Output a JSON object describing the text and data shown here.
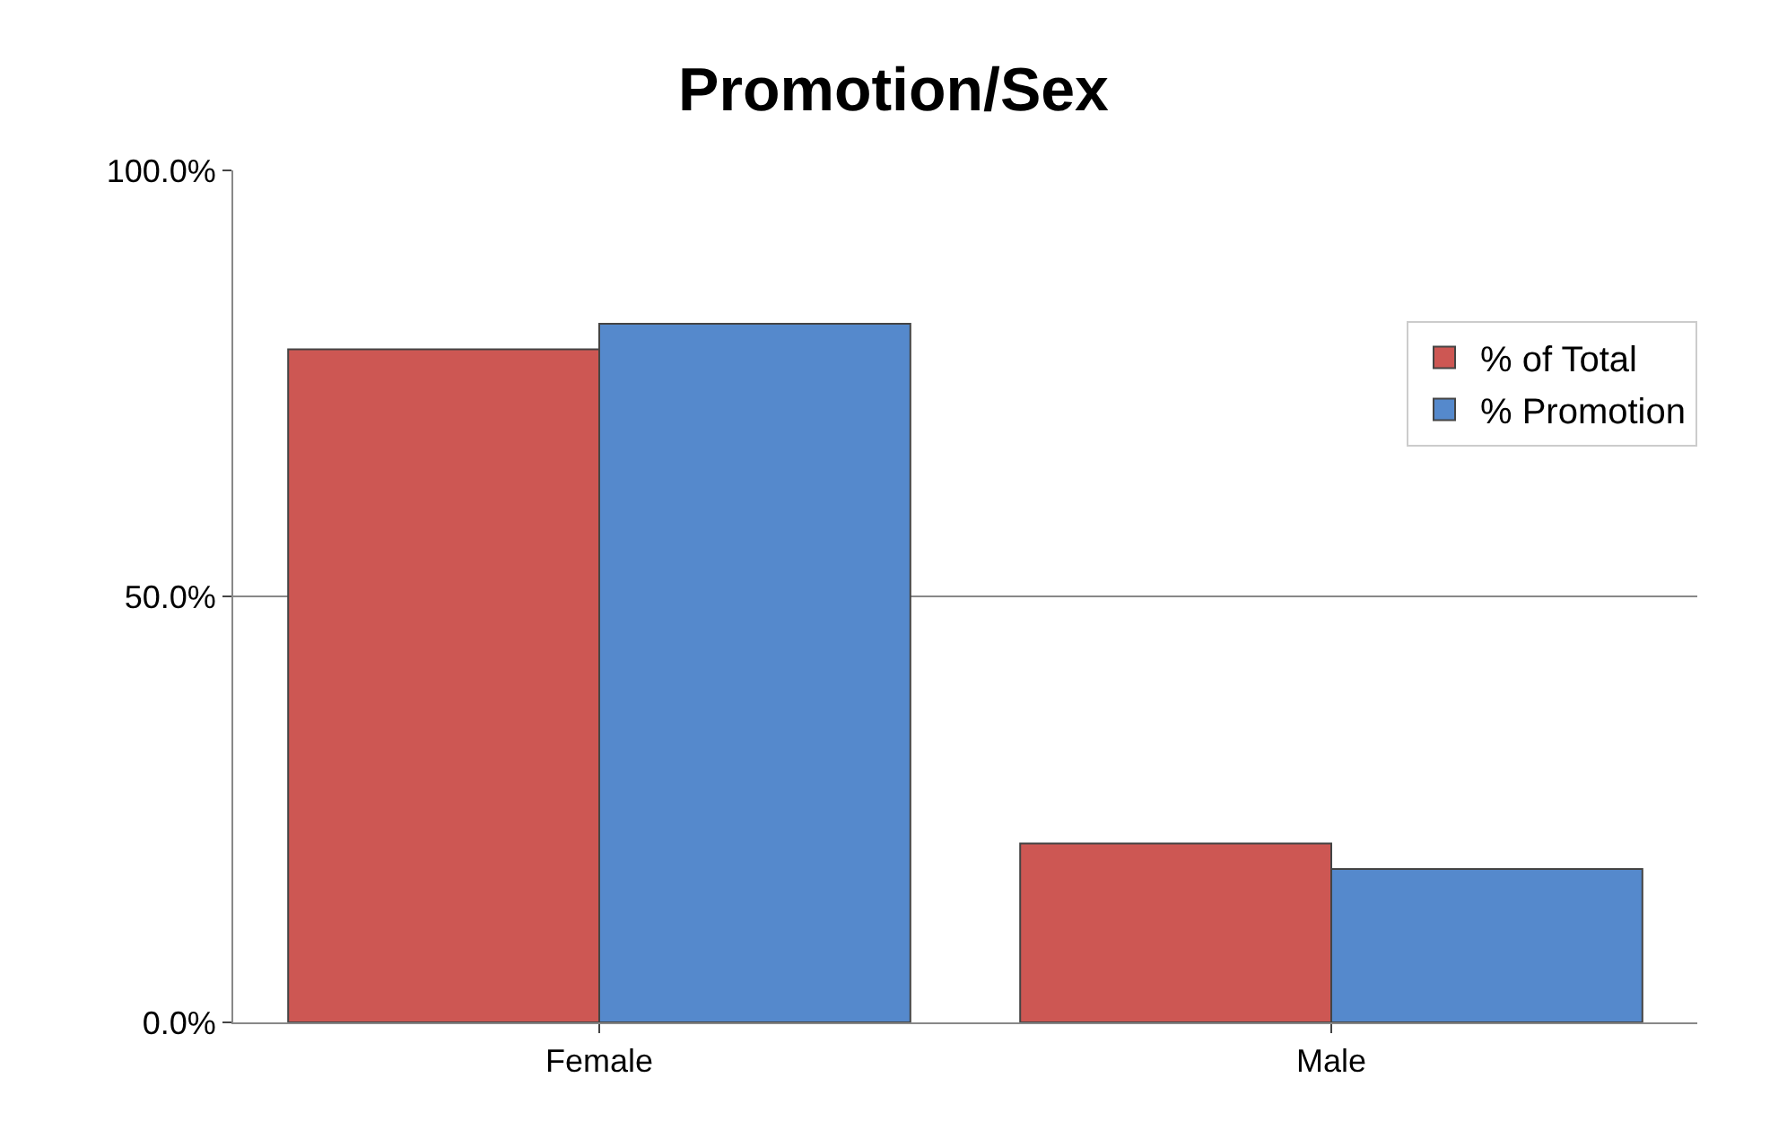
{
  "chart_data": {
    "type": "bar",
    "title": "Promotion/Sex",
    "categories": [
      "Female",
      "Male"
    ],
    "series": [
      {
        "name": "% of Total",
        "color": "#cd5753",
        "values": [
          79,
          21
        ]
      },
      {
        "name": "% Promotion",
        "color": "#5589cc",
        "values": [
          82,
          18
        ]
      }
    ],
    "ylim": [
      0,
      100
    ],
    "yticks": [
      {
        "value": 0,
        "label": "0.0%"
      },
      {
        "value": 50,
        "label": "50.0%"
      },
      {
        "value": 100,
        "label": "100.0%"
      }
    ],
    "grid": "y",
    "legend": "right"
  }
}
